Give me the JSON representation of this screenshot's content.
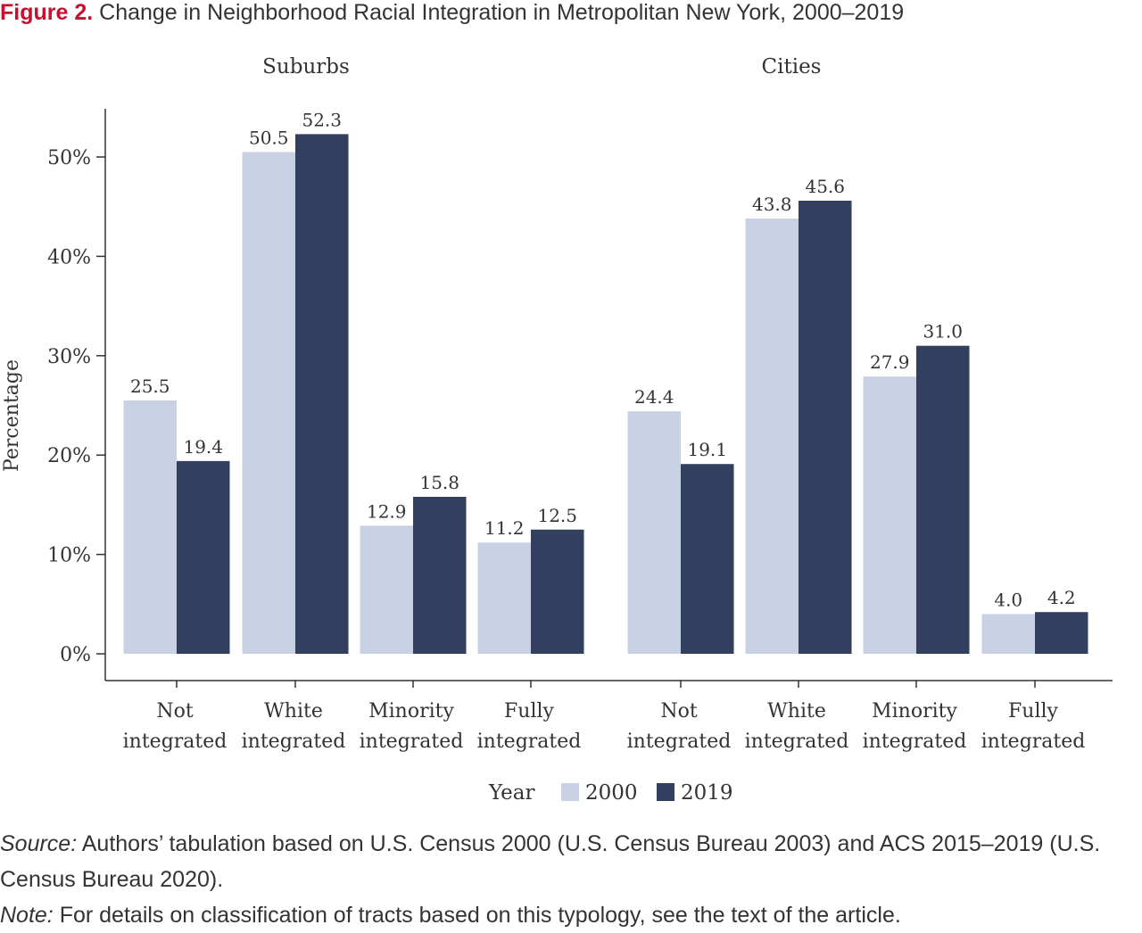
{
  "title": {
    "label": "Figure 2.",
    "text": "Change in Neighborhood Racial Integration in Metropolitan New York, 2000–2019"
  },
  "colors": {
    "series_2000": "#c9d1e5",
    "series_2019": "#323f5e",
    "axis": "#333333",
    "title_label": "#c8102e"
  },
  "chart_data": {
    "type": "bar",
    "ylabel": "Percentage",
    "xlabel": "",
    "ylim": [
      0,
      55
    ],
    "yticks": [
      "0%",
      "10%",
      "20%",
      "30%",
      "40%",
      "50%"
    ],
    "ytick_values": [
      0,
      10,
      20,
      30,
      40,
      50
    ],
    "grid": false,
    "legend": {
      "title": "Year",
      "position": "bottom",
      "entries": [
        "2000",
        "2019"
      ]
    },
    "panels": [
      {
        "name": "Suburbs",
        "categories": [
          "Not integrated",
          "White integrated",
          "Minority integrated",
          "Fully integrated"
        ],
        "series": [
          {
            "name": "2000",
            "values": [
              25.5,
              50.5,
              12.9,
              11.2
            ],
            "labels": [
              "25.5",
              "50.5",
              "12.9",
              "11.2"
            ]
          },
          {
            "name": "2019",
            "values": [
              19.4,
              52.3,
              15.8,
              12.5
            ],
            "labels": [
              "19.4",
              "52.3",
              "15.8",
              "12.5"
            ]
          }
        ]
      },
      {
        "name": "Cities",
        "categories": [
          "Not integrated",
          "White integrated",
          "Minority integrated",
          "Fully integrated"
        ],
        "series": [
          {
            "name": "2000",
            "values": [
              24.4,
              43.8,
              27.9,
              4.0
            ],
            "labels": [
              "24.4",
              "43.8",
              "27.9",
              "4.0"
            ]
          },
          {
            "name": "2019",
            "values": [
              19.1,
              45.6,
              31.0,
              4.2
            ],
            "labels": [
              "19.1",
              "45.6",
              "31.0",
              "4.2"
            ]
          }
        ]
      }
    ],
    "category_lines": [
      [
        "Not",
        "integrated"
      ],
      [
        "White",
        "integrated"
      ],
      [
        "Minority",
        "integrated"
      ],
      [
        "Fully",
        "integrated"
      ]
    ]
  },
  "footnotes": {
    "source_lead": "Source:",
    "source_text": " Authors’ tabulation based on U.S. Census 2000 (U.S. Census Bureau 2003) and ACS 2015–2019 (U.S. Census Bureau 2020).",
    "note_lead": "Note:",
    "note_text": " For details on classification of tracts based on this typology, see the text of the article."
  }
}
